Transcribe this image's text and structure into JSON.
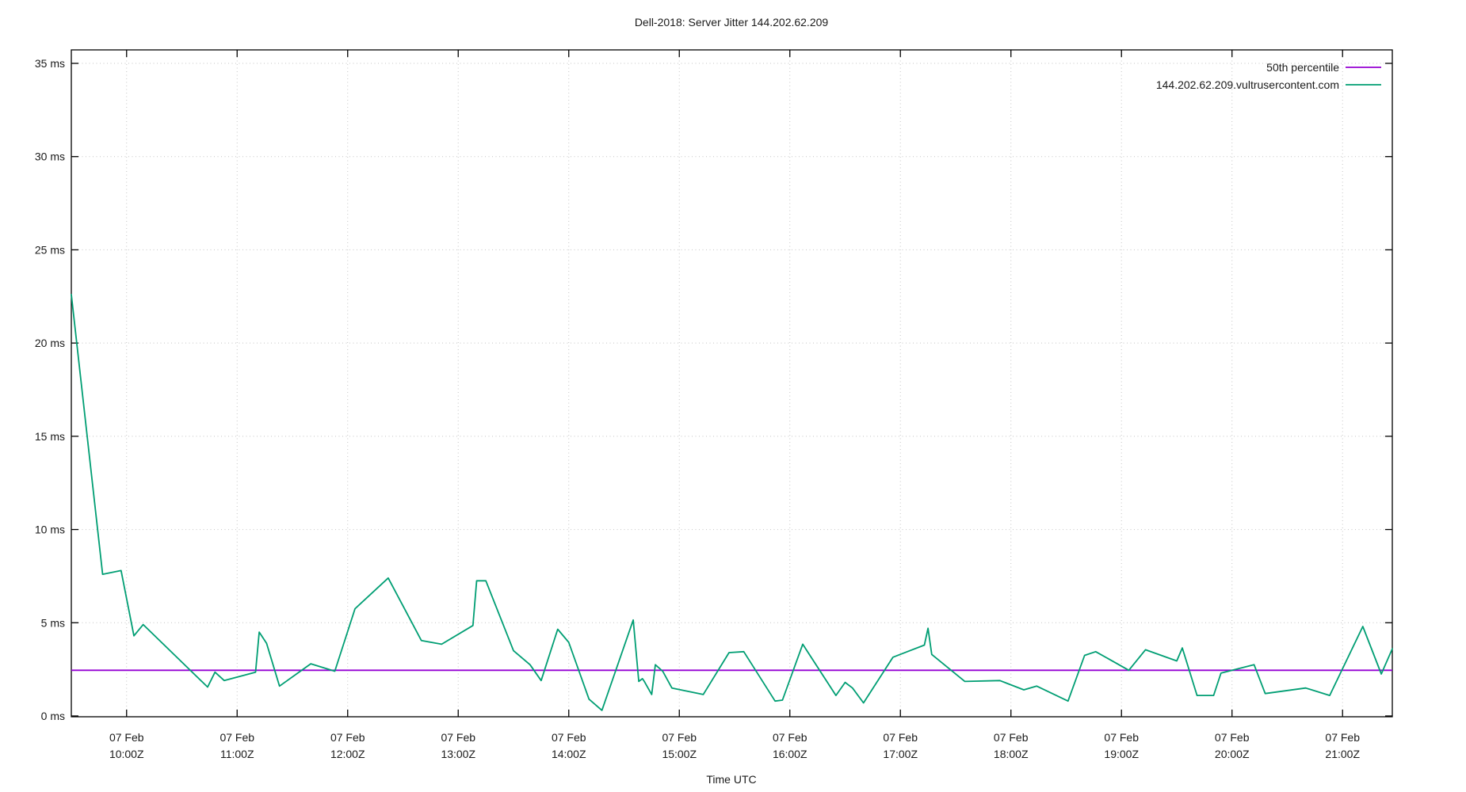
{
  "page": {
    "background": "#ffffff"
  },
  "chart_data": {
    "type": "line",
    "title": "Dell-2018: Server Jitter 144.202.62.209",
    "xlabel": "Time UTC",
    "ylabel": "",
    "y_unit": "ms",
    "ylim": [
      0,
      35
    ],
    "y_tick_values": [
      0,
      5,
      10,
      15,
      20,
      25,
      30,
      35
    ],
    "y_tick_labels": [
      "0 ms",
      "5 ms",
      "10 ms",
      "15 ms",
      "20 ms",
      "25 ms",
      "30 ms",
      "35 ms"
    ],
    "x_tick_date": "07 Feb",
    "x_tick_times": [
      "10:00Z",
      "11:00Z",
      "12:00Z",
      "13:00Z",
      "14:00Z",
      "15:00Z",
      "16:00Z",
      "17:00Z",
      "18:00Z",
      "19:00Z",
      "20:00Z",
      "21:00Z"
    ],
    "x_window": {
      "start": "09:30",
      "end": "21:27"
    },
    "grid": true,
    "legend_position": "inside-top-right",
    "colors": {
      "percentile": "#9400d3",
      "host": "#009e73",
      "grid": "#c4c4c4",
      "axis": "#000000",
      "text": "#1a1a1a"
    },
    "series": [
      {
        "name": "50th percentile",
        "type": "hline",
        "value_ms": 2.45
      },
      {
        "name": "144.202.62.209.vultrusercontent.com",
        "type": "line",
        "points": [
          [
            "09:30",
            22.6
          ],
          [
            "09:47",
            7.6
          ],
          [
            "09:57",
            7.8
          ],
          [
            "10:04",
            4.3
          ],
          [
            "10:09",
            4.9
          ],
          [
            "10:44",
            1.55
          ],
          [
            "10:48",
            2.35
          ],
          [
            "10:53",
            1.9
          ],
          [
            "11:10",
            2.35
          ],
          [
            "11:12",
            4.5
          ],
          [
            "11:16",
            3.9
          ],
          [
            "11:23",
            1.6
          ],
          [
            "11:40",
            2.8
          ],
          [
            "11:53",
            2.4
          ],
          [
            "12:04",
            5.75
          ],
          [
            "12:22",
            7.4
          ],
          [
            "12:40",
            4.05
          ],
          [
            "12:51",
            3.85
          ],
          [
            "13:08",
            4.85
          ],
          [
            "13:10",
            7.25
          ],
          [
            "13:15",
            7.25
          ],
          [
            "13:30",
            3.5
          ],
          [
            "13:39",
            2.75
          ],
          [
            "13:45",
            1.9
          ],
          [
            "13:54",
            4.65
          ],
          [
            "14:00",
            3.95
          ],
          [
            "14:11",
            0.9
          ],
          [
            "14:18",
            0.3
          ],
          [
            "14:35",
            5.15
          ],
          [
            "14:38",
            1.85
          ],
          [
            "14:40",
            2.0
          ],
          [
            "14:41",
            1.85
          ],
          [
            "14:45",
            1.15
          ],
          [
            "14:47",
            2.75
          ],
          [
            "14:51",
            2.4
          ],
          [
            "14:56",
            1.5
          ],
          [
            "15:13",
            1.15
          ],
          [
            "15:27",
            3.4
          ],
          [
            "15:35",
            3.45
          ],
          [
            "15:52",
            0.8
          ],
          [
            "15:56",
            0.85
          ],
          [
            "16:07",
            3.85
          ],
          [
            "16:25",
            1.1
          ],
          [
            "16:30",
            1.8
          ],
          [
            "16:34",
            1.5
          ],
          [
            "16:40",
            0.7
          ],
          [
            "16:56",
            3.15
          ],
          [
            "17:13",
            3.8
          ],
          [
            "17:15",
            4.7
          ],
          [
            "17:17",
            3.3
          ],
          [
            "17:35",
            1.85
          ],
          [
            "17:54",
            1.9
          ],
          [
            "18:07",
            1.4
          ],
          [
            "18:14",
            1.6
          ],
          [
            "18:31",
            0.8
          ],
          [
            "18:40",
            3.25
          ],
          [
            "18:46",
            3.45
          ],
          [
            "19:04",
            2.45
          ],
          [
            "19:13",
            3.55
          ],
          [
            "19:30",
            2.95
          ],
          [
            "19:33",
            3.65
          ],
          [
            "19:41",
            1.1
          ],
          [
            "19:50",
            1.1
          ],
          [
            "19:54",
            2.3
          ],
          [
            "20:12",
            2.75
          ],
          [
            "20:18",
            1.2
          ],
          [
            "20:40",
            1.5
          ],
          [
            "20:53",
            1.1
          ],
          [
            "21:11",
            4.8
          ],
          [
            "21:21",
            2.25
          ],
          [
            "21:27",
            3.6
          ]
        ]
      }
    ]
  }
}
